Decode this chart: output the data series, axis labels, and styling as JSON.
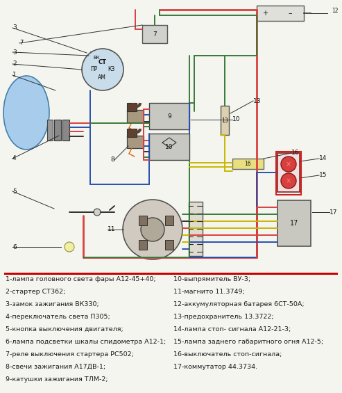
{
  "bg_color": "#f5f5f0",
  "wire_colors": {
    "red": "#d94040",
    "green": "#3a7a3a",
    "blue": "#2850b0",
    "dark": "#303030",
    "yellow": "#c8b800",
    "pink": "#d06080",
    "gray": "#707070"
  },
  "legend_items_left": [
    "1-лампа головного света фары А12-45+40;",
    "2-стартер СТ362;",
    "3-замок зажигания ВК330;",
    "4-переключатель света П305;",
    "5-кнопка выключения двигателя;",
    "6-лампа подсветки шкалы спидометра А12-1;",
    "7-реле выключения стартера РС502;",
    "8-свечи зажигания А17ДВ-1;",
    "9-катушки зажигания ТЛМ-2;"
  ],
  "legend_items_right": [
    "10-выпрямитель ВУ-3;",
    "11-магнито 11.3749;",
    "12-аккумуляторная батарея 6СТ-50А;",
    "13-предохранитель 13.3722;",
    "14-лампа стоп- сигнала А12-21-3;",
    "15-лампа заднего габаритного огня А12-5;",
    "16-выключатель стоп-сигнала;",
    "17-коммутатор 44.3734."
  ],
  "text_color": "#1a1a1a",
  "label_fontsize": 6.8
}
